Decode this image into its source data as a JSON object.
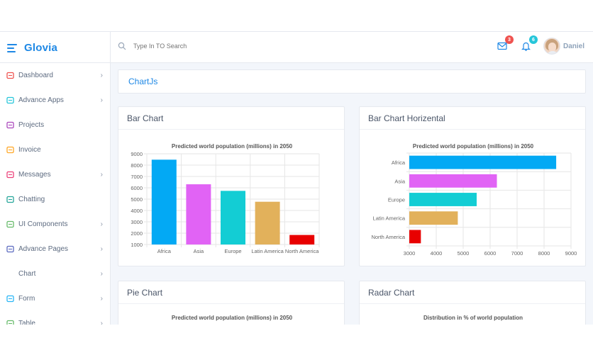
{
  "brand": {
    "name": "Glovia"
  },
  "search": {
    "placeholder": "Type In TO Search"
  },
  "topbar": {
    "mail_badge": "3",
    "bell_badge": "6",
    "user_name": "Daniel",
    "colors": {
      "mail_badge": "#ef5350",
      "bell_badge": "#26c6da"
    }
  },
  "sidebar": {
    "items": [
      {
        "label": "Dashboard",
        "icon": "dashboard-icon",
        "color": "#ef5350",
        "chevron": true
      },
      {
        "label": "Advance Apps",
        "icon": "monitor-icon",
        "color": "#26c6da",
        "chevron": true
      },
      {
        "label": "Projects",
        "icon": "projects-icon",
        "color": "#ab47bc",
        "chevron": false
      },
      {
        "label": "Invoice",
        "icon": "invoice-icon",
        "color": "#ffa726",
        "chevron": false
      },
      {
        "label": "Messages",
        "icon": "mail-icon",
        "color": "#ec407a",
        "chevron": true
      },
      {
        "label": "Chatting",
        "icon": "chat-icon",
        "color": "#26a69a",
        "chevron": false
      },
      {
        "label": "UI Components",
        "icon": "components-icon",
        "color": "#66bb6a",
        "chevron": true
      },
      {
        "label": "Advance Pages",
        "icon": "edit-icon",
        "color": "#5c6bc0",
        "chevron": true
      },
      {
        "label": "Chart",
        "icon": "",
        "color": "#5d6b80",
        "chevron": true
      },
      {
        "label": "Form",
        "icon": "form-icon",
        "color": "#29b6f6",
        "chevron": true
      },
      {
        "label": "Table",
        "icon": "table-icon",
        "color": "#66bb6a",
        "chevron": true
      }
    ]
  },
  "page": {
    "title": "ChartJs"
  },
  "cards": {
    "bar": {
      "title": "Bar Chart"
    },
    "hbar": {
      "title": "Bar Chart Horizental"
    },
    "pie": {
      "title": "Pie Chart"
    },
    "radar": {
      "title": "Radar Chart"
    }
  },
  "chart_data": [
    {
      "type": "bar",
      "title": "Predicted world population (millions) in 2050",
      "categories": [
        "Africa",
        "Asia",
        "Europe",
        "Latin America",
        "North America"
      ],
      "values": [
        8480,
        6310,
        5730,
        4770,
        1840
      ],
      "colors": [
        "#03a9f4",
        "#e163f5",
        "#13cdd4",
        "#e2b15b",
        "#e80000"
      ],
      "ylim": [
        1000,
        9000
      ],
      "yticks": [
        1000,
        2000,
        3000,
        4000,
        5000,
        6000,
        7000,
        8000,
        9000
      ],
      "grid": true
    },
    {
      "type": "bar",
      "orientation": "horizontal",
      "title": "Predicted world population (millions) in 2050",
      "categories": [
        "Africa",
        "Asia",
        "Europe",
        "Latin America",
        "North America"
      ],
      "values": [
        8450,
        6250,
        5500,
        4800,
        3430
      ],
      "colors": [
        "#03a9f4",
        "#e163f5",
        "#13cdd4",
        "#e2b15b",
        "#e80000"
      ],
      "xlim": [
        3000,
        9000
      ],
      "xticks": [
        3000,
        4000,
        5000,
        6000,
        7000,
        8000,
        9000
      ],
      "grid": true
    },
    {
      "type": "pie",
      "title": "Predicted world population (millions) in 2050"
    },
    {
      "type": "radar",
      "title": "Distribution in % of world population"
    }
  ]
}
